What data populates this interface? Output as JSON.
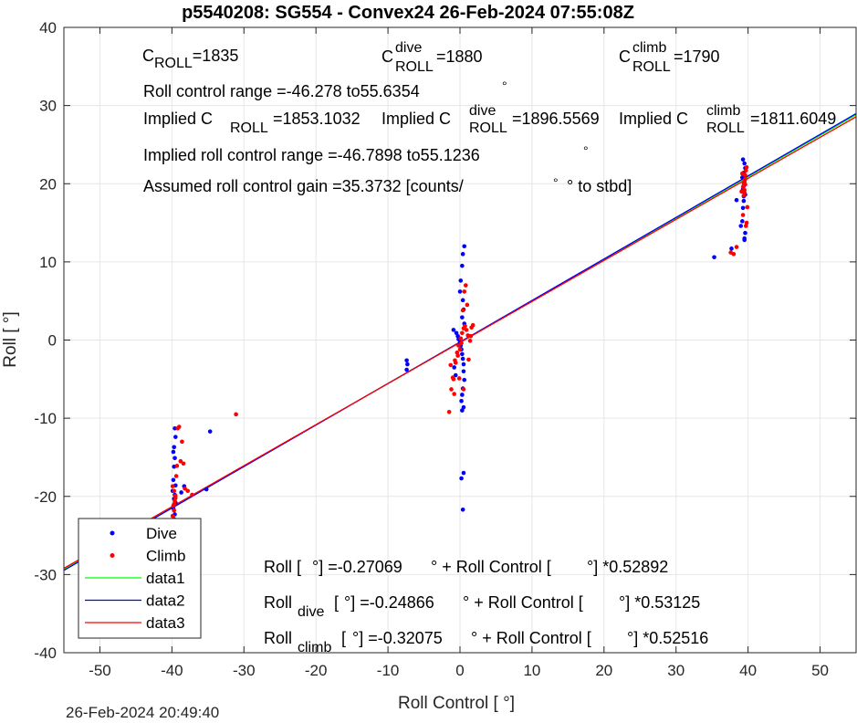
{
  "chart_data": {
    "type": "scatter",
    "title": "p5540208: SG554 - Convex24 26-Feb-2024 07:55:08Z",
    "xlabel": "Roll Control [   °]",
    "ylabel": "Roll [   °]",
    "xlim": [
      -55,
      55
    ],
    "ylim": [
      -40,
      40
    ],
    "xticks": [
      -50,
      -40,
      -30,
      -20,
      -10,
      0,
      10,
      20,
      30,
      40,
      50
    ],
    "yticks": [
      -40,
      -30,
      -20,
      -10,
      0,
      10,
      20,
      30,
      40
    ],
    "grid": true,
    "legend_position": "bottom-left",
    "legend": [
      "Dive",
      "Climb",
      "data1",
      "data2",
      "data3"
    ],
    "colors": {
      "dive": "#0000ff",
      "climb": "#ff0000",
      "data1": "#00ff00",
      "data2": "#0000ff",
      "data3": "#ff0000",
      "grid": "#e6e6e6",
      "axis": "#262626"
    },
    "series": [
      {
        "name": "Dive",
        "kind": "points",
        "color": "#0000ff",
        "x": [
          -39.6,
          -39.7,
          -39.6,
          -39.8,
          -39.5,
          -39.7,
          -39.6,
          -39.9,
          -39.5,
          -39.8,
          -39.7,
          -39.6,
          -39.8,
          -39.7,
          -39.5,
          -39.6,
          -38.7,
          -38.3,
          -35.2,
          -34.7,
          -7.4,
          -7.3,
          -7.4,
          -0.9,
          -0.5,
          -0.3,
          -0.2,
          0.0,
          0.1,
          0.2,
          0.3,
          0.4,
          0.5,
          0.5,
          0.6,
          0.4,
          0.3,
          0.2,
          0.5,
          0.6,
          0.4,
          0.3,
          0.1,
          0.0,
          0.4,
          0.5,
          0.3,
          0.6,
          0.5,
          0.2,
          0.4,
          0.3,
          -0.6,
          -0.8,
          35.3,
          37.7,
          38.4,
          39.0,
          39.2,
          39.3,
          39.4,
          39.5,
          39.6,
          39.4,
          39.3,
          39.5,
          39.2,
          39.4,
          39.6,
          39.5,
          39.3,
          39.4,
          39.6,
          39.5
        ],
        "y": [
          -23.2,
          -22.9,
          -22.3,
          -21.5,
          -20.8,
          -20.3,
          -19.8,
          -19.3,
          -18.6,
          -17.9,
          -16.2,
          -15.1,
          -14.3,
          -13.7,
          -12.4,
          -11.3,
          -19.5,
          -18.7,
          -19.1,
          -11.7,
          -2.6,
          -3.1,
          -3.8,
          1.3,
          0.9,
          0.5,
          0.1,
          -0.3,
          -0.7,
          -1.2,
          -1.8,
          -2.4,
          -3.1,
          -4.0,
          -5.1,
          -6.2,
          -7.0,
          -7.8,
          -8.6,
          12.0,
          11.0,
          9.5,
          7.6,
          6.2,
          5.1,
          3.9,
          2.9,
          2.1,
          -17.0,
          -17.7,
          -21.7,
          -9.0,
          -4.5,
          -3.5,
          10.6,
          11.7,
          17.9,
          14.6,
          15.2,
          16.9,
          17.8,
          13.0,
          13.7,
          18.4,
          19.3,
          20.1,
          20.8,
          21.4,
          22.0,
          22.6,
          23.1,
          19.7,
          18.6,
          12.8
        ]
      },
      {
        "name": "Climb",
        "kind": "points",
        "color": "#ff0000",
        "x": [
          -39.9,
          -39.7,
          -39.8,
          -39.6,
          -39.5,
          -39.7,
          -39.9,
          -39.4,
          -39.3,
          -38.8,
          -38.4,
          -38.2,
          -39.0,
          -39.2,
          -38.6,
          -37.8,
          -37.2,
          -31.1,
          -39.5,
          -39.7,
          -1.5,
          -1.2,
          -1.0,
          -0.7,
          -0.4,
          -0.2,
          0.1,
          0.3,
          0.5,
          0.7,
          0.9,
          1.1,
          1.4,
          1.6,
          0.0,
          -0.3,
          0.6,
          0.8,
          1.2,
          -0.9,
          -1.3,
          0.2,
          0.4,
          -0.6,
          1.0,
          1.5,
          0.5,
          -0.1,
          -0.8,
          1.8,
          37.6,
          38.0,
          38.4,
          39.1,
          39.3,
          39.5,
          39.6,
          39.7,
          39.8,
          39.4,
          39.5,
          39.6,
          39.3,
          39.7,
          39.8,
          39.6,
          39.5,
          39.9,
          39.2,
          39.4
        ],
        "y": [
          -22.5,
          -21.8,
          -21.2,
          -20.6,
          -19.9,
          -19.3,
          -18.7,
          -17.4,
          -16.1,
          -15.5,
          -15.8,
          -19.0,
          -11.1,
          -11.3,
          -13.0,
          -19.3,
          -19.8,
          -9.5,
          -20.2,
          -21.0,
          -9.2,
          -6.3,
          -4.8,
          -2.6,
          -1.6,
          -0.7,
          0.2,
          0.9,
          1.5,
          1.8,
          1.3,
          0.6,
          -0.1,
          1.6,
          -1.2,
          -2.0,
          6.2,
          7.0,
          -2.5,
          -5.0,
          -3.2,
          -0.4,
          3.8,
          -2.9,
          4.5,
          0.5,
          -6.3,
          -4.9,
          -6.9,
          1.9,
          11.2,
          11.0,
          11.9,
          19.0,
          19.6,
          20.3,
          21.1,
          21.7,
          22.1,
          18.5,
          19.2,
          20.6,
          16.0,
          14.6,
          15.0,
          19.9,
          18.9,
          17.0,
          21.3,
          20.0
        ]
      },
      {
        "name": "data1",
        "kind": "line",
        "color": "#00ff00",
        "x": [
          -55,
          55
        ],
        "y": [
          -29.36,
          28.82
        ]
      },
      {
        "name": "data2",
        "kind": "line",
        "color": "#0000ff",
        "x": [
          -55,
          55
        ],
        "y": [
          -29.47,
          28.97
        ]
      },
      {
        "name": "data3",
        "kind": "line",
        "color": "#ff0000",
        "x": [
          -55,
          55
        ],
        "y": [
          -29.2,
          28.56
        ]
      }
    ],
    "annotations": {
      "c_roll": {
        "main": "C",
        "sub": "ROLL",
        "value": "=1835"
      },
      "c_roll_dive": {
        "main": "C",
        "sup": "dive",
        "sub": "ROLL",
        "value": "=1880"
      },
      "c_roll_climb": {
        "main": "C",
        "sup": "climb",
        "sub": "ROLL",
        "value": "=1790"
      },
      "roll_control_range": "Roll control range =-46.278 to55.6354",
      "implied_c_roll": {
        "main": "Implied C",
        "sub": "ROLL",
        "value": "=1853.1032"
      },
      "implied_c_roll_dive": {
        "main": "Implied C",
        "sup": "dive",
        "sub": "ROLL",
        "value": "=1896.5569"
      },
      "implied_c_roll_climb": {
        "main": "Implied C",
        "sup": "climb",
        "sub": "ROLL",
        "value": "=1811.6049"
      },
      "implied_range": "Implied roll control range =-46.7898 to55.1236",
      "gain_a": "Assumed roll control gain =35.3732 [counts/",
      "gain_b": "° to stbd]",
      "deg": "°",
      "fit_all_a": "Roll [",
      "fit_all_b": "°] =-0.27069",
      "fit_all_c": "° + Roll Control [",
      "fit_all_d": "°] *0.52892",
      "fit_dive_main": "Roll",
      "fit_dive_sub": "dive",
      "fit_dive_a": "[",
      "fit_dive_b": "°] =-0.24866",
      "fit_dive_c": "° + Roll Control [",
      "fit_dive_d": "°] *0.53125",
      "fit_climb_main": "Roll",
      "fit_climb_sub": "climb",
      "fit_climb_a": "[",
      "fit_climb_b": "°] =-0.32075",
      "fit_climb_c": "° + Roll Control [",
      "fit_climb_d": "°] *0.52516"
    }
  },
  "footer": {
    "timestamp": "26-Feb-2024 20:49:40"
  }
}
